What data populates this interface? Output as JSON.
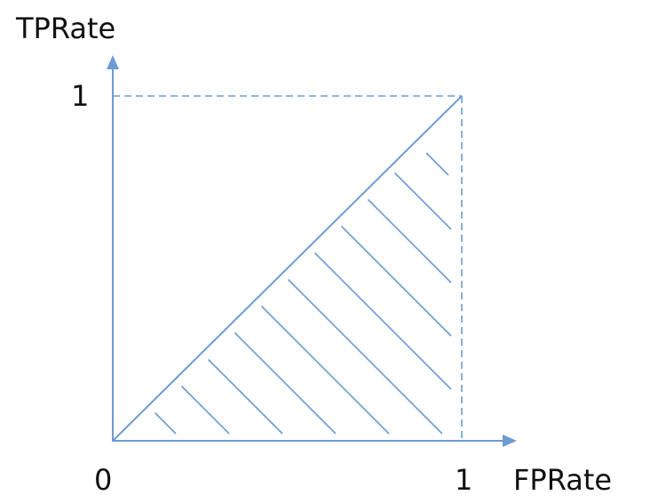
{
  "y_axis": {
    "label": "TPRate",
    "max_label": "1"
  },
  "x_axis": {
    "label": "FPRate",
    "origin_label": "0",
    "max_label": "1"
  }
}
